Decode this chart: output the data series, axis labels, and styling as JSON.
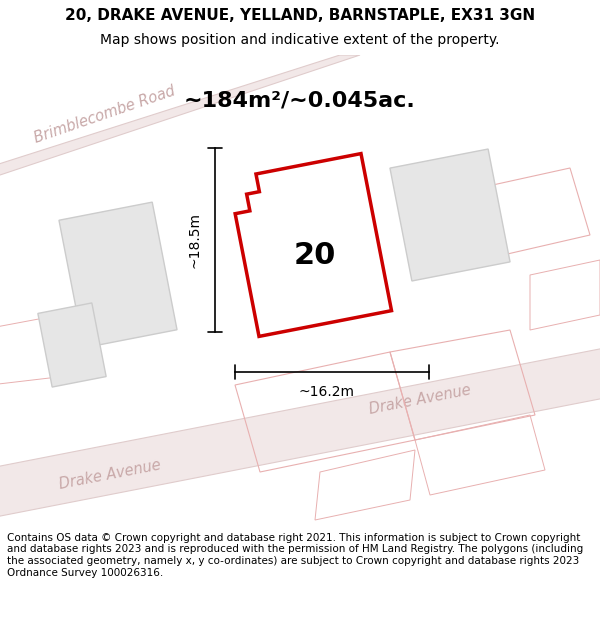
{
  "title_line1": "20, DRAKE AVENUE, YELLAND, BARNSTAPLE, EX31 3GN",
  "title_line2": "Map shows position and indicative extent of the property.",
  "area_label": "~184m²/~0.045ac.",
  "label_20": "20",
  "dim_height": "~18.5m",
  "dim_width": "~16.2m",
  "footer_text": "Contains OS data © Crown copyright and database right 2021. This information is subject to Crown copyright and database rights 2023 and is reproduced with the permission of HM Land Registry. The polygons (including the associated geometry, namely x, y co-ordinates) are subject to Crown copyright and database rights 2023 Ordnance Survey 100026316.",
  "map_bg": "#eeecec",
  "plot_outline_color": "#cc0000",
  "road_label_color": "#c8a8a8",
  "title_fontsize": 11,
  "subtitle_fontsize": 10,
  "area_fontsize": 16,
  "label_fontsize": 22,
  "dim_fontsize": 10,
  "footer_fontsize": 7.5
}
